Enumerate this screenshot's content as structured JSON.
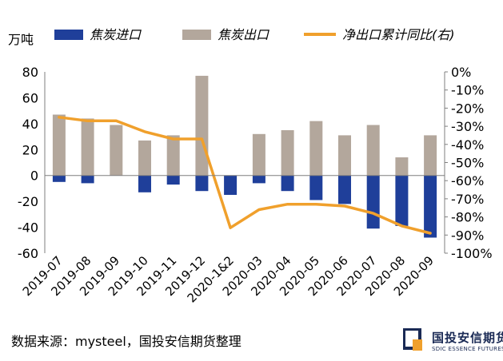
{
  "chart_data": {
    "type": "bar+line",
    "unit_left": "万吨",
    "categories": [
      "2019-07",
      "2019-08",
      "2019-09",
      "2019-10",
      "2019-11",
      "2019-12",
      "2020-1&2",
      "2020-03",
      "2020-04",
      "2020-05",
      "2020-06",
      "2020-07",
      "2020-08",
      "2020-09"
    ],
    "series": [
      {
        "name": "焦炭进口",
        "type": "bar",
        "axis": "left",
        "color": "#1f3f9a",
        "values": [
          -5,
          -6,
          0,
          -13,
          -7,
          -12,
          -15,
          -6,
          -12,
          -19,
          -22,
          -41,
          -39,
          -48
        ]
      },
      {
        "name": "焦炭出口",
        "type": "bar",
        "axis": "left",
        "color": "#b3a79c",
        "values": [
          47,
          44,
          39,
          27,
          31,
          77,
          0,
          32,
          35,
          42,
          31,
          39,
          14,
          31
        ]
      },
      {
        "name": "净出口累计同比(右)",
        "type": "line",
        "axis": "right",
        "color": "#f0a02c",
        "values": [
          -25,
          -27,
          -27,
          -33,
          -37,
          -37,
          -86,
          -76,
          -73,
          -73,
          -74,
          -78,
          -85,
          -89
        ]
      }
    ],
    "y_left": {
      "min": -60,
      "max": 80,
      "step": 20,
      "ticks": [
        "80",
        "60",
        "40",
        "20",
        "0",
        "-20",
        "-40",
        "-60"
      ]
    },
    "y_right": {
      "min": -100,
      "max": 0,
      "step": 10,
      "ticks": [
        "0%",
        "-10%",
        "-20%",
        "-30%",
        "-40%",
        "-50%",
        "-60%",
        "-70%",
        "-80%",
        "-90%",
        "-100%"
      ]
    },
    "legend_position": "top",
    "grid": false
  },
  "source_text": "数据来源：mysteel，国投安信期货整理",
  "logo": {
    "name_cn": "国投安信期货",
    "name_en": "SDIC ESSENCE FUTURES",
    "colors": {
      "primary": "#1a2a55",
      "accent": "#f0a02c"
    }
  }
}
